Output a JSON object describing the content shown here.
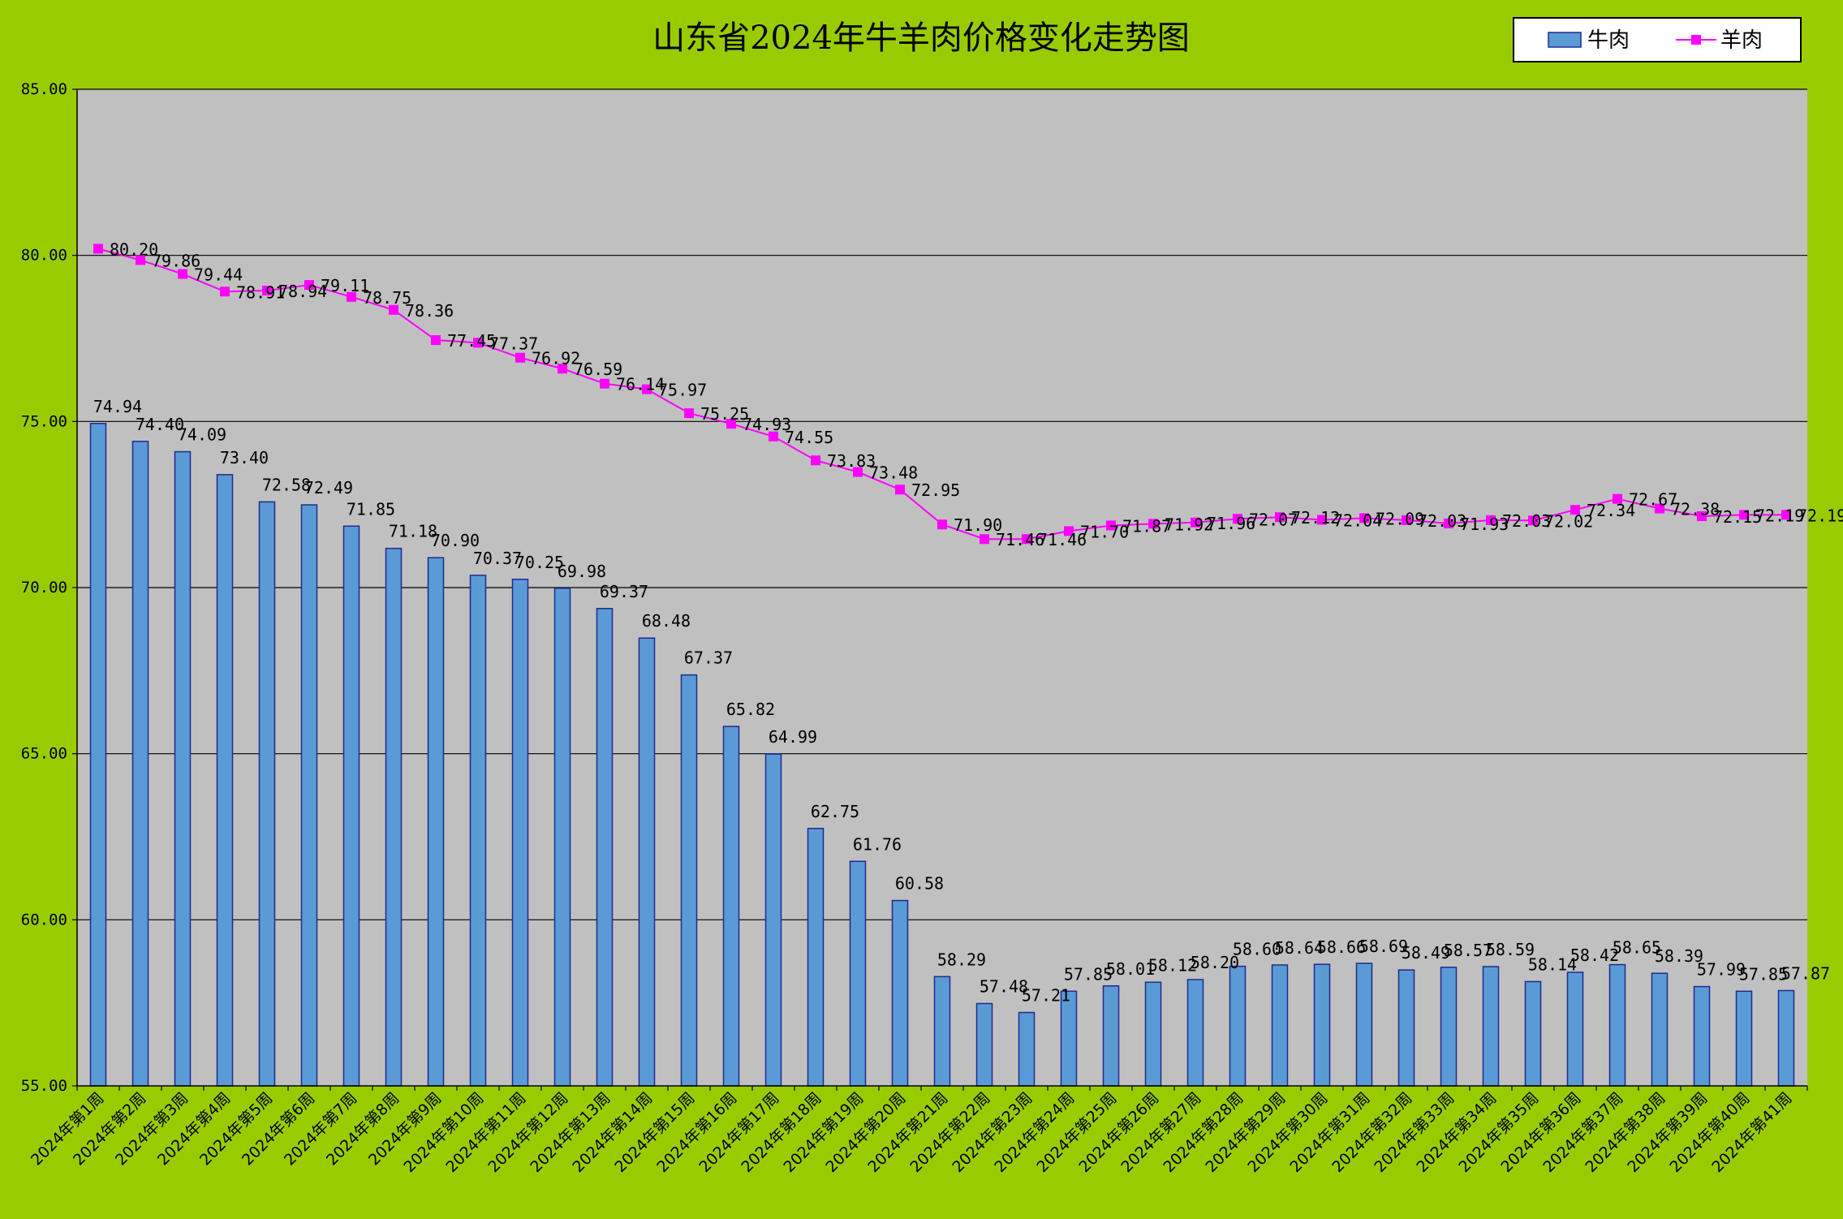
{
  "chart_data": {
    "type": "bar",
    "title": "山东省2024年牛羊肉价格变化走势图",
    "xlabel": "",
    "ylabel": "",
    "ylim": [
      55,
      85
    ],
    "yticks": [
      "55.00",
      "60.00",
      "65.00",
      "70.00",
      "75.00",
      "80.00",
      "85.00"
    ],
    "grid": true,
    "legend_position": "top-right",
    "categories": [
      "2024年第1周",
      "2024年第2周",
      "2024年第3周",
      "2024年第4周",
      "2024年第5周",
      "2024年第6周",
      "2024年第7周",
      "2024年第8周",
      "2024年第9周",
      "2024年第10周",
      "2024年第11周",
      "2024年第12周",
      "2024年第13周",
      "2024年第14周",
      "2024年第15周",
      "2024年第16周",
      "2024年第17周",
      "2024年第18周",
      "2024年第19周",
      "2024年第20周",
      "2024年第21周",
      "2024年第22周",
      "2024年第23周",
      "2024年第24周",
      "2024年第25周",
      "2024年第26周",
      "2024年第27周",
      "2024年第28周",
      "2024年第29周",
      "2024年第30周",
      "2024年第31周",
      "2024年第32周",
      "2024年第33周",
      "2024年第34周",
      "2024年第35周",
      "2024年第36周",
      "2024年第37周",
      "2024年第38周",
      "2024年第39周",
      "2024年第40周",
      "2024年第41周"
    ],
    "series": [
      {
        "name": "牛肉",
        "type": "bar",
        "color": "#5b9bd5",
        "values": [
          74.94,
          74.4,
          74.09,
          73.4,
          72.58,
          72.49,
          71.85,
          71.18,
          70.9,
          70.37,
          70.25,
          69.98,
          69.37,
          68.48,
          67.37,
          65.82,
          64.99,
          62.75,
          61.76,
          60.58,
          58.29,
          57.48,
          57.21,
          57.85,
          58.01,
          58.12,
          58.2,
          58.6,
          58.64,
          58.66,
          58.69,
          58.49,
          58.57,
          58.59,
          58.14,
          58.42,
          58.65,
          58.39,
          57.99,
          57.85,
          57.87
        ],
        "labels": [
          "74.94",
          "74.40",
          "74.09",
          "73.40",
          "72.58",
          "72.49",
          "71.85",
          "71.18",
          "70.90",
          "70.37",
          "70.25",
          "69.98",
          "69.37",
          "68.48",
          "67.37",
          "65.82",
          "64.99",
          "62.75",
          "61.76",
          "60.58",
          "58.29",
          "57.48",
          "57.21",
          "57.85",
          "58.01",
          "58.12",
          "58.20",
          "58.60",
          "58.64",
          "58.66",
          "58.69",
          "58.49",
          "58.57",
          "58.59",
          "58.14",
          "58.42",
          "58.65",
          "58.39",
          "57.99",
          "57.85",
          "57.87"
        ]
      },
      {
        "name": "羊肉",
        "type": "line",
        "color": "#ff00ff",
        "values": [
          80.2,
          79.86,
          79.44,
          78.91,
          78.94,
          79.11,
          78.75,
          78.36,
          77.45,
          77.37,
          76.92,
          76.59,
          76.14,
          75.97,
          75.25,
          74.93,
          74.55,
          73.83,
          73.48,
          72.95,
          71.9,
          71.46,
          71.46,
          71.7,
          71.87,
          71.92,
          71.96,
          72.07,
          72.12,
          72.04,
          72.09,
          72.03,
          71.93,
          72.03,
          72.02,
          72.34,
          72.67,
          72.38,
          72.15,
          72.19,
          72.19
        ],
        "labels": [
          "80.20",
          "79.86",
          "79.44",
          "78.91",
          "78.94",
          "79.11",
          "78.75",
          "78.36",
          "77.45",
          "77.37",
          "76.92",
          "76.59",
          "76.14",
          "75.97",
          "75.25",
          "74.93",
          "74.55",
          "73.83",
          "73.48",
          "72.95",
          "71.90",
          "71.46",
          "71.46",
          "71.70",
          "71.87",
          "71.92",
          "71.96",
          "72.07",
          "72.12",
          "72.04",
          "72.09",
          "72.03",
          "71.93",
          "72.03",
          "72.02",
          "72.34",
          "72.67",
          "72.38",
          "72.15",
          "72.19",
          "72.19"
        ]
      }
    ]
  }
}
